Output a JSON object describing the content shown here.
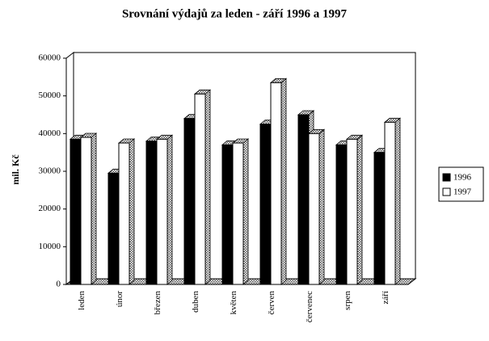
{
  "chart_data": {
    "type": "bar3d",
    "title": "Srovnání výdajů za leden - září 1996 a 1997",
    "y_label": "mil. Kč",
    "categories": [
      "leden",
      "únor",
      "březen",
      "duben",
      "květen",
      "červen",
      "červenec",
      "srpen",
      "září"
    ],
    "series": [
      {
        "name": "1996",
        "color": "#000000",
        "values": [
          38500,
          29500,
          38000,
          44000,
          37000,
          42500,
          45000,
          37000,
          35000
        ]
      },
      {
        "name": "1997",
        "color": "#ffffff",
        "values": [
          39000,
          37500,
          38500,
          50500,
          37500,
          53500,
          40000,
          38500,
          43000
        ]
      }
    ],
    "ylim": [
      0,
      60000
    ],
    "yticks": [
      0,
      10000,
      20000,
      30000,
      40000,
      50000,
      60000
    ],
    "legend": "right"
  }
}
